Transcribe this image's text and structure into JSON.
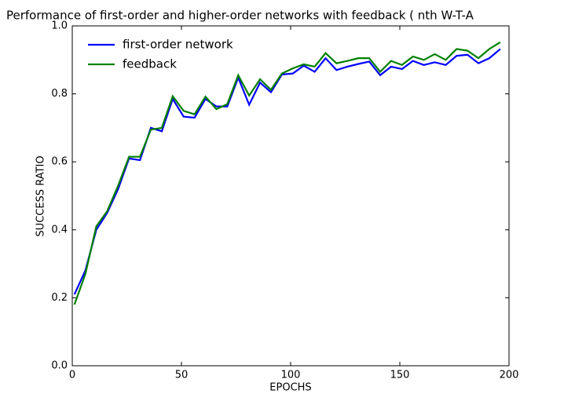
{
  "chart_data": {
    "type": "line",
    "title": "Performance of first-order and higher-order networks with feedback ( nth W-T-A",
    "xlabel": "EPOCHS",
    "ylabel": "SUCCESS RATIO",
    "x": [
      1,
      6,
      11,
      16,
      21,
      26,
      31,
      36,
      41,
      46,
      51,
      56,
      61,
      66,
      71,
      76,
      81,
      86,
      91,
      96,
      101,
      106,
      111,
      116,
      121,
      126,
      131,
      136,
      141,
      146,
      151,
      156,
      161,
      166,
      171,
      176,
      181,
      186,
      191,
      196
    ],
    "series": [
      {
        "name": "first-order network",
        "color": "#0000ff",
        "values": [
          0.21,
          0.28,
          0.4,
          0.45,
          0.52,
          0.61,
          0.605,
          0.7,
          0.69,
          0.785,
          0.733,
          0.73,
          0.785,
          0.763,
          0.763,
          0.848,
          0.768,
          0.833,
          0.805,
          0.857,
          0.86,
          0.883,
          0.865,
          0.905,
          0.87,
          0.88,
          0.888,
          0.895,
          0.855,
          0.88,
          0.873,
          0.897,
          0.885,
          0.893,
          0.885,
          0.912,
          0.915,
          0.89,
          0.905,
          0.932
        ]
      },
      {
        "name": "feedback",
        "color": "#008000",
        "values": [
          0.18,
          0.27,
          0.41,
          0.455,
          0.53,
          0.615,
          0.615,
          0.695,
          0.7,
          0.793,
          0.75,
          0.74,
          0.792,
          0.755,
          0.77,
          0.855,
          0.795,
          0.843,
          0.812,
          0.86,
          0.875,
          0.887,
          0.88,
          0.92,
          0.89,
          0.897,
          0.905,
          0.905,
          0.865,
          0.897,
          0.885,
          0.91,
          0.9,
          0.917,
          0.9,
          0.932,
          0.927,
          0.905,
          0.932,
          0.952
        ]
      }
    ],
    "xlim": [
      0,
      200
    ],
    "xticks": [
      0,
      50,
      100,
      150,
      200
    ],
    "ylim": [
      0,
      1
    ],
    "yticks": [
      {
        "value": 0,
        "label": "0.0"
      },
      {
        "value": 0.2,
        "label": "0.2"
      },
      {
        "value": 0.4,
        "label": "0.4"
      },
      {
        "value": 0.6,
        "label": "0.6"
      },
      {
        "value": 0.8,
        "label": "0.8"
      },
      {
        "value": 1,
        "label": "1.0"
      }
    ],
    "legend": "upper left"
  }
}
